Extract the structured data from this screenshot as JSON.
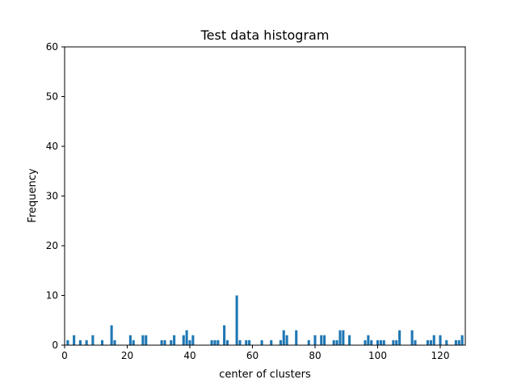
{
  "chart_data": {
    "type": "bar",
    "title": "Test data histogram",
    "xlabel": "center of clusters",
    "ylabel": "Frequency",
    "xlim": [
      0,
      128
    ],
    "ylim": [
      0,
      60
    ],
    "x_ticks": [
      0,
      20,
      40,
      60,
      80,
      100,
      120
    ],
    "y_ticks": [
      0,
      10,
      20,
      30,
      40,
      50,
      60
    ],
    "bar_color": "#1f77b4",
    "grid": false,
    "x": [
      1,
      3,
      5,
      7,
      9,
      12,
      15,
      16,
      21,
      22,
      25,
      26,
      31,
      32,
      34,
      35,
      38,
      39,
      40,
      41,
      47,
      48,
      49,
      51,
      52,
      55,
      56,
      58,
      59,
      63,
      66,
      69,
      70,
      71,
      74,
      78,
      80,
      82,
      83,
      86,
      87,
      88,
      89,
      91,
      96,
      97,
      98,
      100,
      101,
      102,
      105,
      106,
      107,
      111,
      112,
      116,
      117,
      118,
      120,
      122,
      125,
      126,
      127
    ],
    "values": [
      1,
      2,
      1,
      1,
      2,
      1,
      4,
      1,
      2,
      1,
      2,
      2,
      1,
      1,
      1,
      2,
      2,
      3,
      1,
      2,
      1,
      1,
      1,
      4,
      1,
      10,
      1,
      1,
      1,
      1,
      1,
      1,
      3,
      2,
      3,
      1,
      2,
      2,
      2,
      1,
      1,
      3,
      3,
      2,
      1,
      2,
      1,
      1,
      1,
      1,
      1,
      1,
      3,
      3,
      1,
      1,
      1,
      2,
      2,
      1,
      1,
      1,
      2
    ]
  }
}
